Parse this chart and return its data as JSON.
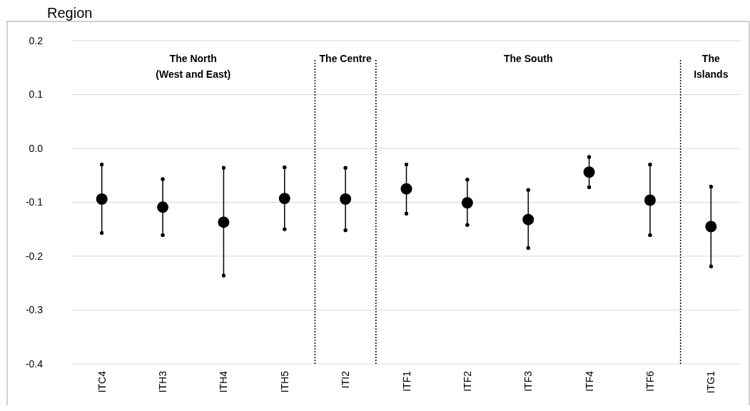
{
  "chart_data": {
    "type": "scatter",
    "title": "Region",
    "categories": [
      "ITC4",
      "ITH3",
      "ITH4",
      "ITH5",
      "ITI2",
      "ITF1",
      "ITF2",
      "ITF3",
      "ITF4",
      "ITF6",
      "ITG1"
    ],
    "values": [
      -0.094,
      -0.109,
      -0.137,
      -0.093,
      -0.094,
      -0.075,
      -0.101,
      -0.132,
      -0.044,
      -0.096,
      -0.145
    ],
    "errors": [
      [
        -0.157,
        -0.03
      ],
      [
        -0.161,
        -0.057
      ],
      [
        -0.236,
        -0.036
      ],
      [
        -0.15,
        -0.035
      ],
      [
        -0.152,
        -0.036
      ],
      [
        -0.121,
        -0.03
      ],
      [
        -0.142,
        -0.058
      ],
      [
        -0.185,
        -0.077
      ],
      [
        -0.072,
        -0.016
      ],
      [
        -0.161,
        -0.03
      ],
      [
        -0.219,
        -0.071
      ]
    ],
    "color": "#000000",
    "marker": "circle",
    "ylim": [
      -0.4,
      0.2
    ],
    "yticks": [
      {
        "value": -0.4,
        "label": "-0.4"
      },
      {
        "value": -0.3,
        "label": "-0.3"
      },
      {
        "value": -0.2,
        "label": "-0.2"
      },
      {
        "value": -0.1,
        "label": "-0.1"
      },
      {
        "value": 0,
        "label": "0.0"
      },
      {
        "value": 0.1,
        "label": "0.1"
      },
      {
        "value": 0.2,
        "label": "0.2"
      }
    ],
    "grid": "y",
    "annotations": [
      "The North\n(West and East)",
      "The Centre",
      "The South",
      "The\nIslands"
    ]
  }
}
